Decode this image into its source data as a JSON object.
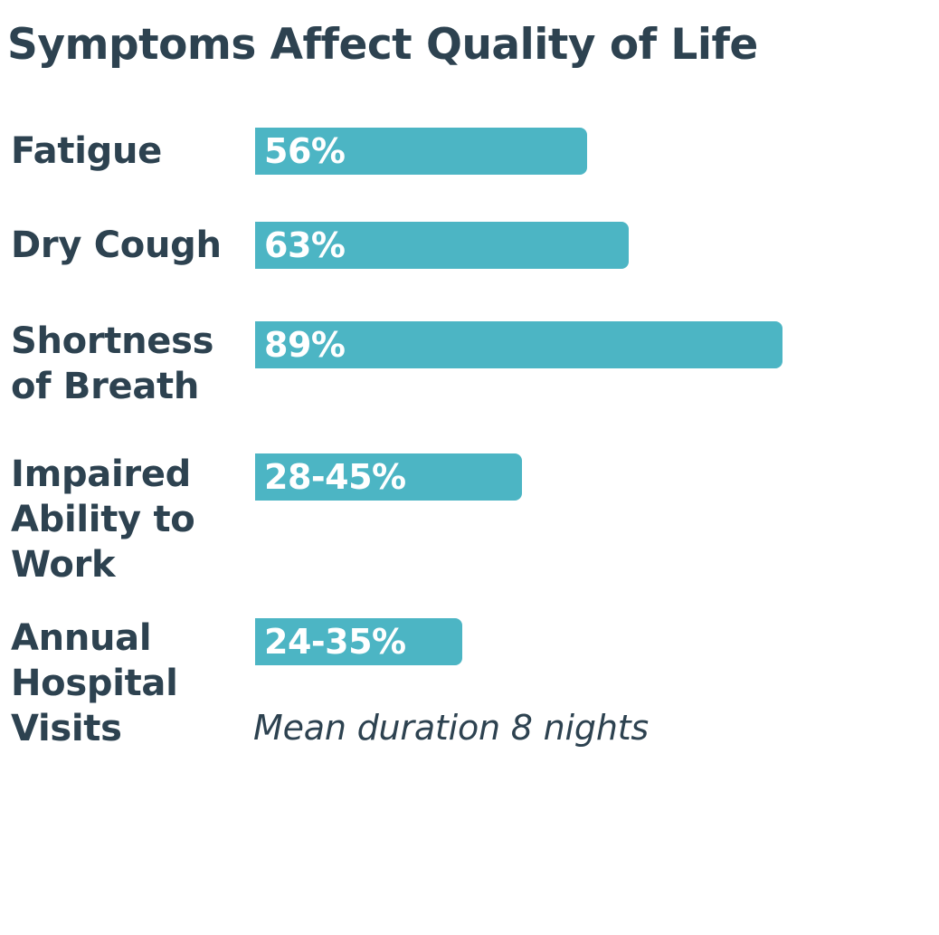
{
  "chart_data": {
    "type": "bar",
    "orientation": "horizontal",
    "title": "Symptoms Affect Quality of Life",
    "xlabel": "",
    "ylabel": "",
    "xlim": [
      0,
      100
    ],
    "grid": false,
    "bar_color": "#4cb5c4",
    "text_color": "#2d4250",
    "categories": [
      "Fatigue",
      "Dry Cough",
      "Shortness of Breath",
      "Impaired Ability to Work",
      "Annual Hospital Visits"
    ],
    "values": [
      56,
      63,
      89,
      [
        28,
        45
      ],
      [
        24,
        35
      ]
    ],
    "value_labels": [
      "56%",
      "63%",
      "89%",
      "28-45%",
      "24-35%"
    ],
    "annotations": [
      "Mean duration 8 nights"
    ]
  }
}
